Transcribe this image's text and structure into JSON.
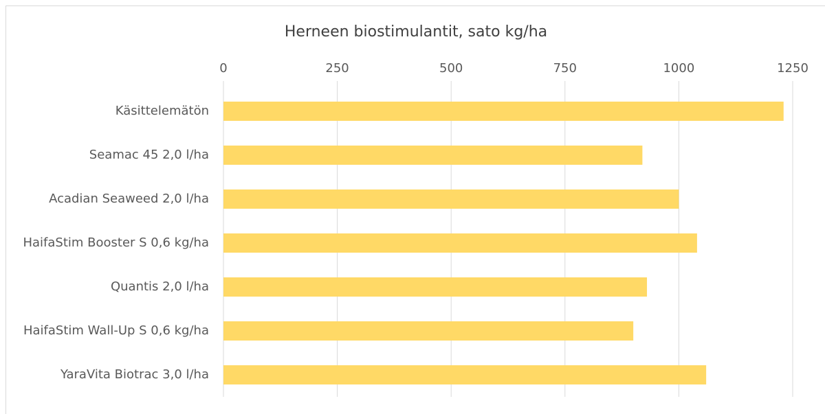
{
  "chart_data": {
    "type": "bar",
    "orientation": "horizontal",
    "title": "Herneen biostimulantit, sato kg/ha",
    "categories": [
      "Käsittelemätön",
      "Seamac 45 2,0 l/ha",
      "Acadian Seaweed 2,0 l/ha",
      "HaifaStim Booster S 0,6 kg/ha",
      "Quantis 2,0 l/ha",
      "HaifaStim Wall-Up S 0,6 kg/ha",
      "YaraVita Biotrac 3,0 l/ha"
    ],
    "values": [
      1230,
      920,
      1000,
      1040,
      930,
      900,
      1060
    ],
    "color": "#ffd966",
    "xlim": [
      0,
      1250
    ],
    "xticks": [
      0,
      250,
      500,
      750,
      1000,
      1250
    ],
    "grid": true
  }
}
